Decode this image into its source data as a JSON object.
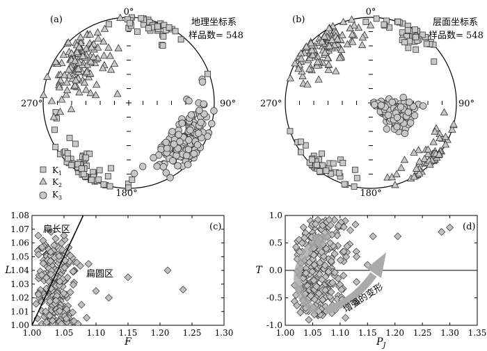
{
  "chart_data": [
    {
      "panel": "(a)",
      "type": "scatter",
      "plot": "equal-area lower-hemisphere stereonet",
      "title_lines": [
        "地理坐标系",
        "样品数= 548"
      ],
      "n_samples": 548,
      "direction_labels": {
        "north": "0°",
        "east": "90°",
        "south": "180°",
        "west": "270°"
      },
      "legend": [
        "K1",
        "K2",
        "K3"
      ],
      "legend_placement": "bottom-left",
      "series": [
        {
          "name": "K1",
          "marker": "square",
          "clusters": [
            {
              "trend": 20,
              "plunge": 5,
              "count": 40,
              "spread": 8
            },
            {
              "trend": 215,
              "plunge": 5,
              "count": 60,
              "spread": 9
            }
          ]
        },
        {
          "name": "K2",
          "marker": "triangle",
          "clusters": [
            {
              "trend": 310,
              "plunge": 25,
              "count": 130,
              "spread": 12
            }
          ]
        },
        {
          "name": "K3",
          "marker": "circle",
          "clusters": [
            {
              "trend": 125,
              "plunge": 20,
              "count": 170,
              "spread": 10
            }
          ]
        }
      ]
    },
    {
      "panel": "(b)",
      "type": "scatter",
      "plot": "equal-area lower-hemisphere stereonet",
      "title_lines": [
        "层面坐标系",
        "样品数= 548"
      ],
      "n_samples": 548,
      "direction_labels": {
        "north": "0°",
        "east": "90°",
        "south": "180°",
        "west": "270°"
      },
      "series": [
        {
          "name": "K1",
          "marker": "square",
          "clusters": [
            {
              "trend": 30,
              "plunge": 5,
              "count": 40,
              "spread": 8
            },
            {
              "trend": 220,
              "plunge": 5,
              "count": 40,
              "spread": 9
            }
          ]
        },
        {
          "name": "K2",
          "marker": "triangle",
          "clusters": [
            {
              "trend": 320,
              "plunge": 15,
              "count": 110,
              "spread": 10
            },
            {
              "trend": 135,
              "plunge": 5,
              "count": 60,
              "spread": 9
            }
          ]
        },
        {
          "name": "K3",
          "marker": "circle",
          "clusters": [
            {
              "trend": 110,
              "plunge": 65,
              "count": 190,
              "spread": 9
            }
          ]
        }
      ]
    },
    {
      "panel": "(c)",
      "type": "scatter",
      "xlabel": "F",
      "ylabel": "L",
      "xlim": [
        1.0,
        1.3
      ],
      "ylim": [
        1.0,
        1.08
      ],
      "xticks": [
        "1.00",
        "1.05",
        "1.10",
        "1.15",
        "1.20",
        "1.25",
        "1.30"
      ],
      "yticks": [
        "1.00",
        "1.01",
        "1.02",
        "1.03",
        "1.04",
        "1.05",
        "1.06",
        "1.07",
        "1.08"
      ],
      "annotations": [
        "扁长区",
        "扁圆区"
      ],
      "reference_line": {
        "from": [
          1.0,
          1.0
        ],
        "to": [
          1.08,
          1.08
        ]
      },
      "points_outliers": [
        [
          1.15,
          1.035
        ],
        [
          1.212,
          1.04
        ],
        [
          1.236,
          1.026
        ],
        [
          1.12,
          1.02
        ],
        [
          1.1,
          1.025
        ]
      ],
      "main_cloud": {
        "x_center": 1.035,
        "y_center": 1.025,
        "count": 260
      }
    },
    {
      "panel": "(d)",
      "type": "scatter",
      "xlabel": "P",
      "xlabel_subscript": "J",
      "ylabel": "T",
      "xlim": [
        1.0,
        1.35
      ],
      "ylim": [
        -1.0,
        1.0
      ],
      "xticks": [
        "1.00",
        "1.05",
        "1.10",
        "1.15",
        "1.20",
        "1.25",
        "1.30",
        "1.35"
      ],
      "yticks": [
        "1.0",
        "0.5",
        "0.0",
        "-0.5",
        "-1.0"
      ],
      "annotations": [
        "增强的变形"
      ],
      "reference_line": {
        "y": 0.0
      },
      "points_outliers": [
        [
          1.205,
          0.62
        ],
        [
          1.285,
          0.7
        ],
        [
          1.3,
          0.78
        ],
        [
          1.16,
          0.62
        ],
        [
          1.15,
          0.1
        ],
        [
          1.13,
          0.25
        ]
      ],
      "main_cloud": {
        "x_center": 1.055,
        "y_center": 0.05,
        "count": 260
      }
    }
  ]
}
